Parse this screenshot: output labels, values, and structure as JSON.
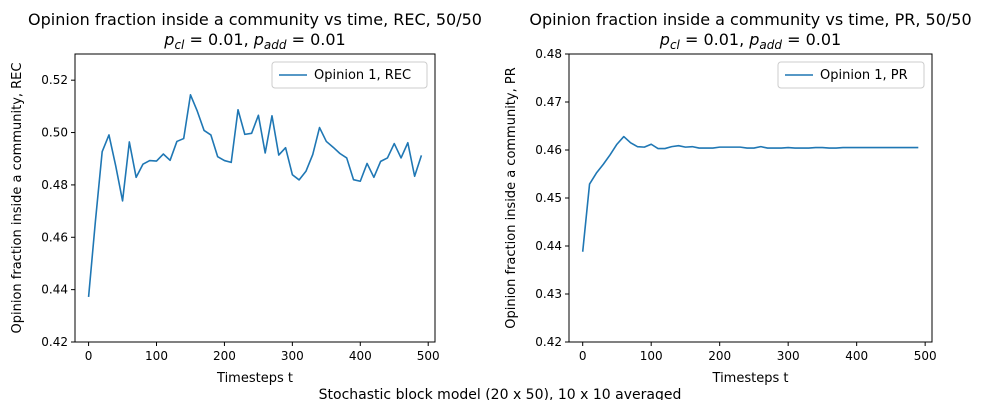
{
  "figure": {
    "suptitle": "Stochastic block model (20 x 50), 10 x 10 averaged"
  },
  "chart_data": [
    {
      "type": "line",
      "title_line1": "Opinion fraction inside a community vs time, REC, 50/50",
      "title_line2": {
        "p": "p",
        "cl": "cl",
        "add": "add",
        "mid": " = 0.01, ",
        "end": " = 0.01"
      },
      "xlabel": "Timesteps t",
      "ylabel": "Opinion fraction inside a community, REC",
      "xlim": [
        -20,
        510
      ],
      "ylim": [
        0.42,
        0.53
      ],
      "xticks": [
        0,
        100,
        200,
        300,
        400,
        500
      ],
      "yticks": [
        0.42,
        0.44,
        0.46,
        0.48,
        0.5,
        0.52
      ],
      "ytick_decimals": 2,
      "legend_position": "top-right",
      "line_color": "#1f77b4",
      "series": [
        {
          "name": "Opinion 1, REC",
          "x": [
            0,
            10,
            20,
            30,
            40,
            50,
            60,
            70,
            80,
            90,
            100,
            110,
            120,
            130,
            140,
            150,
            160,
            170,
            180,
            190,
            200,
            210,
            220,
            230,
            240,
            250,
            260,
            270,
            280,
            290,
            300,
            310,
            320,
            330,
            340,
            350,
            360,
            370,
            380,
            390,
            400,
            410,
            420,
            430,
            440,
            450,
            460,
            470,
            480,
            490
          ],
          "y": [
            0.4372,
            0.466,
            0.4927,
            0.4991,
            0.4872,
            0.4739,
            0.4964,
            0.4829,
            0.4879,
            0.4893,
            0.4891,
            0.4918,
            0.4894,
            0.4966,
            0.4977,
            0.5144,
            0.5082,
            0.5008,
            0.4991,
            0.4908,
            0.4893,
            0.4886,
            0.5087,
            0.4993,
            0.4997,
            0.5066,
            0.4922,
            0.5064,
            0.4914,
            0.4942,
            0.4839,
            0.4819,
            0.4852,
            0.4916,
            0.5019,
            0.4966,
            0.4944,
            0.492,
            0.4903,
            0.482,
            0.4814,
            0.4882,
            0.4829,
            0.489,
            0.4903,
            0.4958,
            0.4903,
            0.4961,
            0.4833,
            0.4913
          ]
        }
      ]
    },
    {
      "type": "line",
      "title_line1": "Opinion fraction inside a community vs time, PR, 50/50",
      "title_line2": {
        "p": "p",
        "cl": "cl",
        "add": "add",
        "mid": " = 0.01, ",
        "end": " = 0.01"
      },
      "xlabel": "Timesteps t",
      "ylabel": "Opinion fraction inside a community, PR",
      "xlim": [
        -20,
        510
      ],
      "ylim": [
        0.42,
        0.48
      ],
      "xticks": [
        0,
        100,
        200,
        300,
        400,
        500
      ],
      "yticks": [
        0.42,
        0.43,
        0.44,
        0.45,
        0.46,
        0.47,
        0.48
      ],
      "ytick_decimals": 2,
      "legend_position": "top-right",
      "line_color": "#1f77b4",
      "series": [
        {
          "name": "Opinion 1, PR",
          "x": [
            0,
            10,
            20,
            30,
            40,
            50,
            60,
            70,
            80,
            90,
            100,
            110,
            120,
            130,
            140,
            150,
            160,
            170,
            180,
            190,
            200,
            210,
            220,
            230,
            240,
            250,
            260,
            270,
            280,
            290,
            300,
            310,
            320,
            330,
            340,
            350,
            360,
            370,
            380,
            390,
            400,
            410,
            420,
            430,
            440,
            450,
            460,
            470,
            480,
            490
          ],
          "y": [
            0.4388,
            0.4529,
            0.4552,
            0.457,
            0.459,
            0.4612,
            0.4628,
            0.4615,
            0.4607,
            0.4606,
            0.4612,
            0.4603,
            0.4603,
            0.4607,
            0.4609,
            0.4606,
            0.4607,
            0.4604,
            0.4604,
            0.4604,
            0.4606,
            0.4606,
            0.4606,
            0.4606,
            0.4604,
            0.4604,
            0.4607,
            0.4604,
            0.4604,
            0.4604,
            0.4605,
            0.4604,
            0.4604,
            0.4604,
            0.4605,
            0.4605,
            0.4604,
            0.4604,
            0.4605,
            0.4605,
            0.4605,
            0.4605,
            0.4605,
            0.4605,
            0.4605,
            0.4605,
            0.4605,
            0.4605,
            0.4605,
            0.4605
          ]
        }
      ]
    }
  ]
}
